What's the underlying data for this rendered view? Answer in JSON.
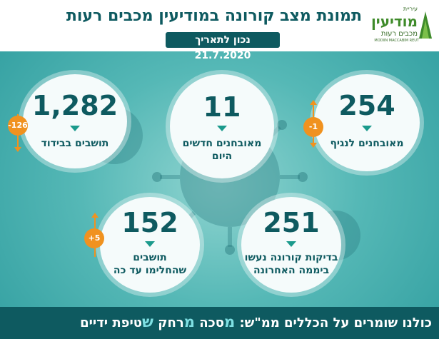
{
  "header": {
    "title": "תמונת מצב קורונה במודיעין מכבים רעות",
    "date": "נכון לתאריך 21.7.2020"
  },
  "logo": {
    "small": "עיריית",
    "main": "מודיעין",
    "sub": "מכבים רעות",
    "en": "MODIIN MACCABIM REUT"
  },
  "stats": {
    "new_infected": {
      "value": "254",
      "label": "מאובחנים לנגיף",
      "change": "-1"
    },
    "today": {
      "value": "11",
      "label_1": "מאובחנים חדשים",
      "label_2": "היום"
    },
    "isolation": {
      "value": "1,282",
      "label": "תושבים בבידוד",
      "change": "-126"
    },
    "tests": {
      "value": "251",
      "label_1": "בדיקות קורונה נעשו",
      "label_2": "ביממה האחרונה"
    },
    "recovered": {
      "value": "152",
      "label_1": "תושבים",
      "label_2": "שהחלימו עד כה",
      "change": "+5"
    }
  },
  "footer": {
    "prefix": "כולנו שומרים על הכללים ממ\"ש:",
    "mask_letter": "מ",
    "mask_rest": "סכה",
    "distance_letter": "מ",
    "distance_rest": "רחק",
    "hygiene_letter": "ש",
    "hygiene_rest": "טיפת ידיים"
  },
  "colors": {
    "primary": "#0e5a60",
    "accent_orange": "#f0921f",
    "teal_bg": "#55b8b6",
    "logo_green": "#3f8b2a"
  }
}
